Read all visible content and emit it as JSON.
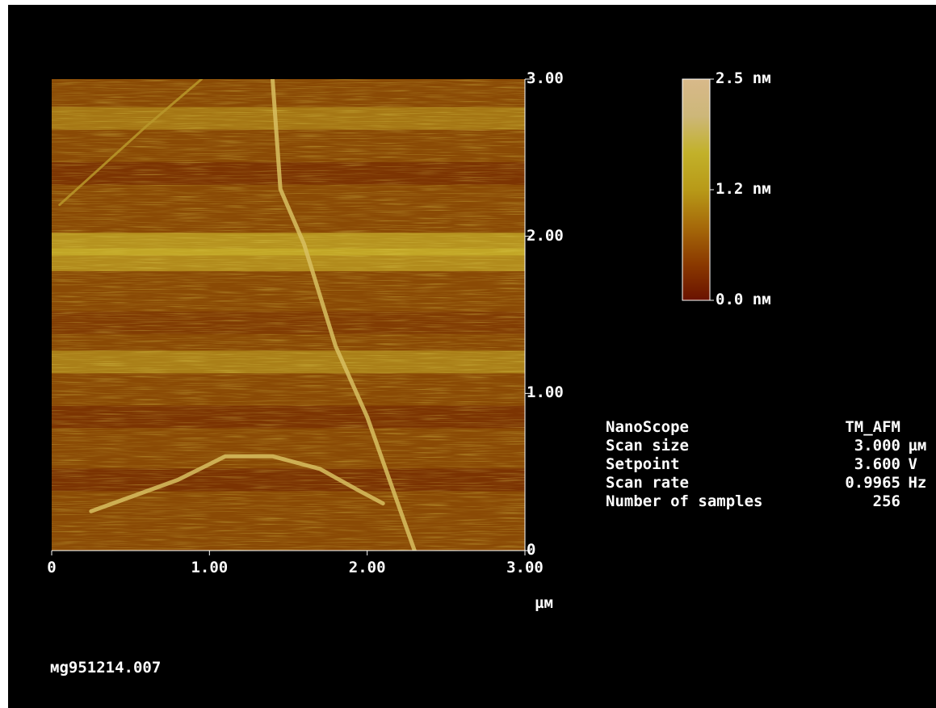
{
  "chart_data": {
    "type": "heatmap",
    "x_ticks": [
      "0",
      "1.00",
      "2.00",
      "3.00"
    ],
    "y_ticks": [
      "0",
      "1.00",
      "2.00",
      "3.00"
    ],
    "xlim": [
      0,
      3
    ],
    "ylim": [
      0,
      3
    ],
    "xlabel": "µм",
    "colorbar": {
      "labels": [
        "2.5 nм",
        "1.2 nм",
        "0.0 nм"
      ],
      "range": [
        0.0,
        2.5
      ],
      "colors": [
        "#6a1200",
        "#8b3a00",
        "#a66a0a",
        "#b89a18",
        "#c2b12a",
        "#cdb779",
        "#d8b98a"
      ]
    },
    "features": [
      {
        "name": "ridge-curve",
        "x": [
          0.25,
          0.8,
          1.1,
          1.4,
          1.7,
          1.95,
          2.1
        ],
        "y": [
          0.25,
          0.45,
          0.6,
          0.6,
          0.52,
          0.38,
          0.3
        ]
      },
      {
        "name": "step-line",
        "x": [
          1.4,
          1.45,
          1.6,
          1.8,
          2.0,
          2.3
        ],
        "y": [
          3.0,
          2.3,
          1.95,
          1.3,
          0.85,
          0.0
        ]
      },
      {
        "name": "faint-diagonal",
        "x": [
          0.05,
          0.6,
          0.95
        ],
        "y": [
          2.2,
          2.7,
          3.0
        ]
      }
    ],
    "bands": [
      {
        "y": 1.95,
        "brightness": 0.9
      },
      {
        "y": 1.85,
        "brightness": 0.8
      },
      {
        "y": 1.45,
        "brightness": 0.5
      },
      {
        "y": 1.2,
        "brightness": 0.65
      },
      {
        "y": 0.85,
        "brightness": 0.2
      },
      {
        "y": 0.45,
        "brightness": 0.15
      },
      {
        "y": 2.4,
        "brightness": 0.2
      },
      {
        "y": 2.75,
        "brightness": 0.55
      }
    ]
  },
  "info": [
    {
      "key": "NanoScope",
      "value": "TM_AFM",
      "unit": ""
    },
    {
      "key": "Scan size",
      "value": "3.000",
      "unit": "µм"
    },
    {
      "key": "Setpoint",
      "value": "3.600",
      "unit": "V"
    },
    {
      "key": "Scan rate",
      "value": "0.9965",
      "unit": "Hz"
    },
    {
      "key": "Number of samples",
      "value": "256",
      "unit": ""
    }
  ],
  "filename": "мg951214.007"
}
